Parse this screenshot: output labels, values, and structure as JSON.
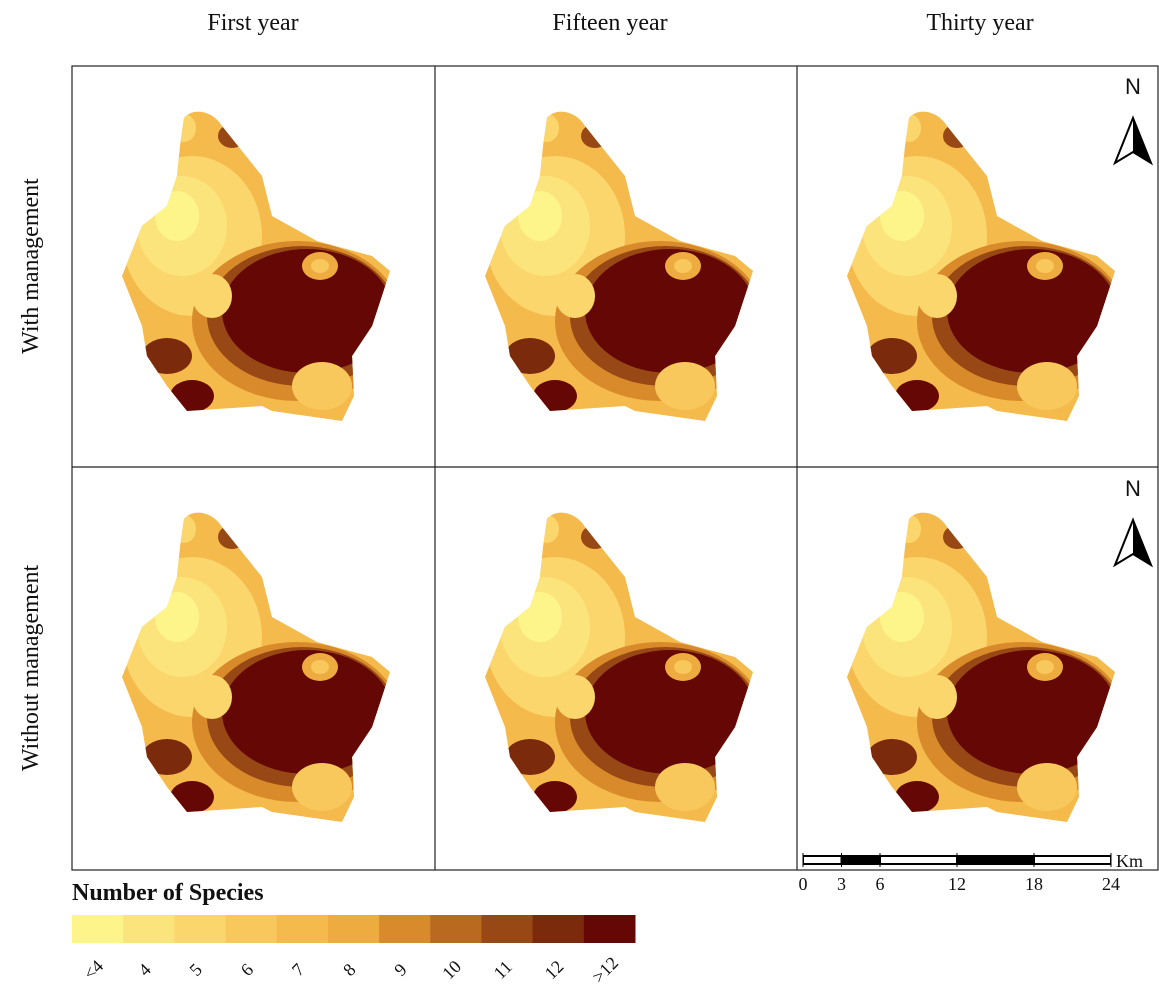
{
  "columns": [
    "First year",
    "Fifteen year",
    "Thirty year"
  ],
  "rows": [
    "With management",
    "Without management"
  ],
  "north_label": "N",
  "legend": {
    "title": "Number of Species",
    "classes": [
      {
        "label": "<4",
        "color": "#fdf58a"
      },
      {
        "label": "4",
        "color": "#fce47c"
      },
      {
        "label": "5",
        "color": "#fbd66c"
      },
      {
        "label": "6",
        "color": "#f8c85c"
      },
      {
        "label": "7",
        "color": "#f5ba4c"
      },
      {
        "label": "8",
        "color": "#eeab40"
      },
      {
        "label": "9",
        "color": "#d98b2b"
      },
      {
        "label": "10",
        "color": "#ba6a1e"
      },
      {
        "label": "11",
        "color": "#984814"
      },
      {
        "label": "12",
        "color": "#7c2a0c"
      },
      {
        "label": ">12",
        "color": "#650705"
      }
    ]
  },
  "scale_bar": {
    "unit": "Km",
    "ticks": [
      0,
      3,
      6,
      12,
      18,
      24
    ]
  }
}
